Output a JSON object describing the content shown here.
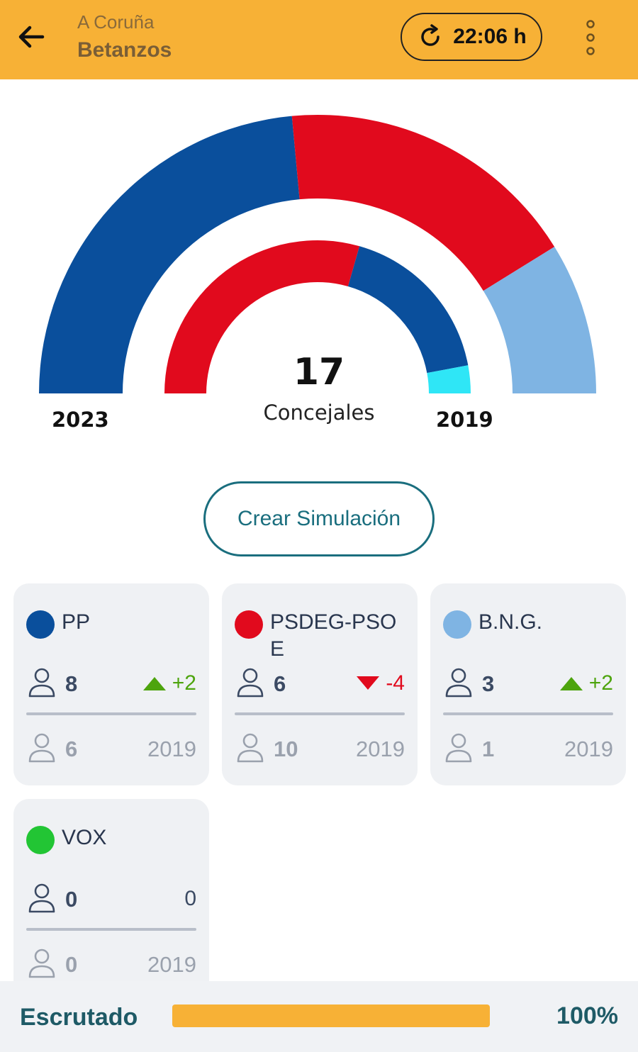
{
  "header": {
    "province": "A Coruña",
    "town": "Betanzos",
    "time": "22:06 h"
  },
  "summary": {
    "seats": "17",
    "seats_label": "Concejales",
    "year_current": "2023",
    "year_previous": "2019"
  },
  "simulate_label": "Crear Simulación",
  "parties": [
    {
      "name": "PP",
      "color": "#0a4f9c",
      "seats": "8",
      "diff": "+2",
      "trend": "up",
      "prev_seats": "6",
      "prev_year": "2019"
    },
    {
      "name": "PSDEG-PSOE",
      "color": "#e10a1d",
      "seats": "6",
      "diff": "-4",
      "trend": "down",
      "prev_seats": "10",
      "prev_year": "2019"
    },
    {
      "name": "B.N.G.",
      "color": "#7fb4e3",
      "seats": "3",
      "diff": "+2",
      "trend": "up",
      "prev_seats": "1",
      "prev_year": "2019"
    },
    {
      "name": "VOX",
      "color": "#22c534",
      "seats": "0",
      "diff": "0",
      "trend": "none",
      "prev_seats": "0",
      "prev_year": "2019"
    }
  ],
  "chart_data": {
    "type": "pie",
    "title": "",
    "outer_ring_2023": {
      "categories": [
        "PP",
        "PSDEG-PSOE",
        "B.N.G."
      ],
      "values": [
        8,
        6,
        3
      ],
      "colors": [
        "#0a4f9c",
        "#e10a1d",
        "#7fb4e3"
      ]
    },
    "inner_ring_2019": {
      "categories": [
        "PSDEG-PSOE",
        "PP",
        "B.N.G."
      ],
      "values": [
        10,
        6,
        1
      ],
      "colors": [
        "#e10a1d",
        "#0a4f9c",
        "#2fe6f6"
      ]
    }
  },
  "footer": {
    "label": "Escrutado",
    "percent_text": "100%",
    "progress": 1.0
  }
}
